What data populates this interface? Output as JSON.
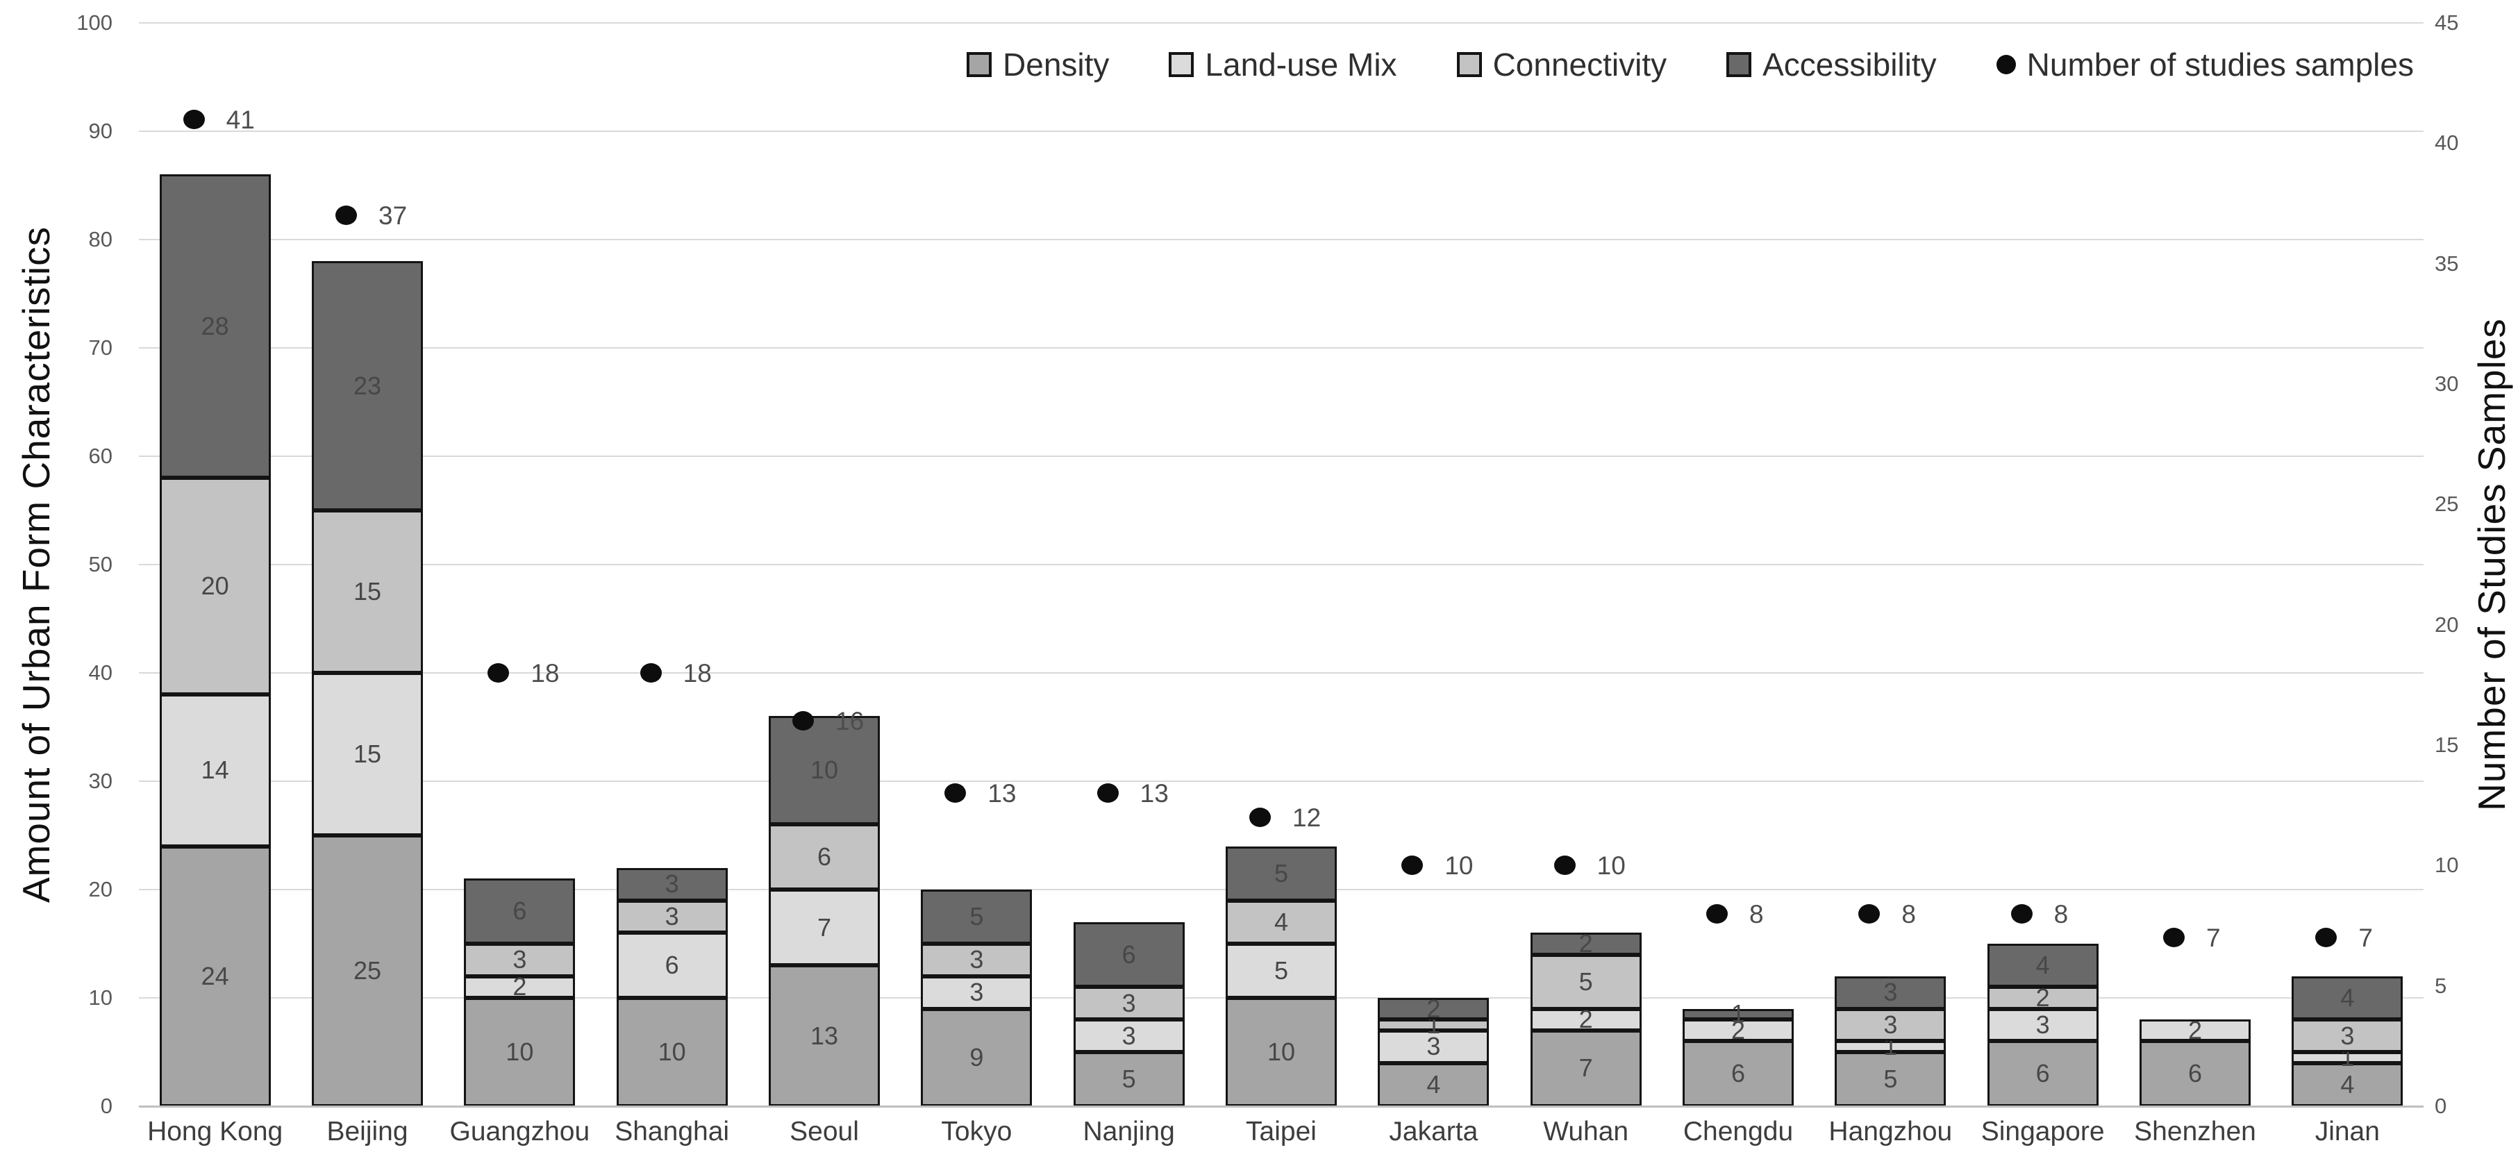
{
  "chart_data": {
    "type": "bar",
    "subtype": "stacked-column-with-dot-overlay",
    "title": "",
    "categories": [
      "Hong Kong",
      "Beijing",
      "Guangzhou",
      "Shanghai",
      "Seoul",
      "Tokyo",
      "Nanjing",
      "Taipei",
      "Jakarta",
      "Wuhan",
      "Chengdu",
      "Hangzhou",
      "Singapore",
      "Shenzhen",
      "Jinan"
    ],
    "series": [
      {
        "name": "Density",
        "color": "#a5a5a5",
        "values": [
          24,
          25,
          10,
          10,
          13,
          9,
          5,
          10,
          4,
          7,
          6,
          5,
          6,
          6,
          4
        ]
      },
      {
        "name": "Land-use Mix",
        "color": "#dbdbdb",
        "values": [
          14,
          15,
          2,
          6,
          7,
          3,
          3,
          5,
          3,
          2,
          2,
          1,
          3,
          2,
          1
        ]
      },
      {
        "name": "Connectivity",
        "color": "#c3c3c3",
        "values": [
          20,
          15,
          3,
          3,
          6,
          3,
          3,
          4,
          1,
          5,
          0,
          3,
          2,
          0,
          3
        ]
      },
      {
        "name": "Accessibility",
        "color": "#696969",
        "values": [
          28,
          23,
          6,
          3,
          10,
          5,
          6,
          5,
          2,
          2,
          1,
          3,
          4,
          0,
          4
        ]
      }
    ],
    "dot_series": {
      "name": "Number of studies samples",
      "color": "#0d0d0d",
      "values": [
        41,
        37,
        18,
        18,
        16,
        13,
        13,
        12,
        10,
        10,
        8,
        8,
        8,
        7,
        7
      ]
    },
    "left_axis": {
      "label": "Amount of Urban Form Characteristics",
      "min": 0,
      "max": 100,
      "step": 10,
      "ticks": [
        0,
        10,
        20,
        30,
        40,
        50,
        60,
        70,
        80,
        90,
        100
      ]
    },
    "right_axis": {
      "label": "Number of Studies Samples",
      "min": 0,
      "max": 45,
      "step": 5,
      "ticks": [
        0,
        5,
        10,
        15,
        20,
        25,
        30,
        35,
        40,
        45
      ]
    },
    "legend": [
      {
        "label": "Density",
        "swatch": "square",
        "color": "#a5a5a5"
      },
      {
        "label": "Land-use Mix",
        "swatch": "square",
        "color": "#dbdbdb"
      },
      {
        "label": "Connectivity",
        "swatch": "square",
        "color": "#c3c3c3"
      },
      {
        "label": "Accessibility",
        "swatch": "square",
        "color": "#696969"
      },
      {
        "label": "Number of studies samples",
        "swatch": "dot",
        "color": "#0d0d0d"
      }
    ],
    "grid": "horizontal",
    "legend_position": "top"
  }
}
